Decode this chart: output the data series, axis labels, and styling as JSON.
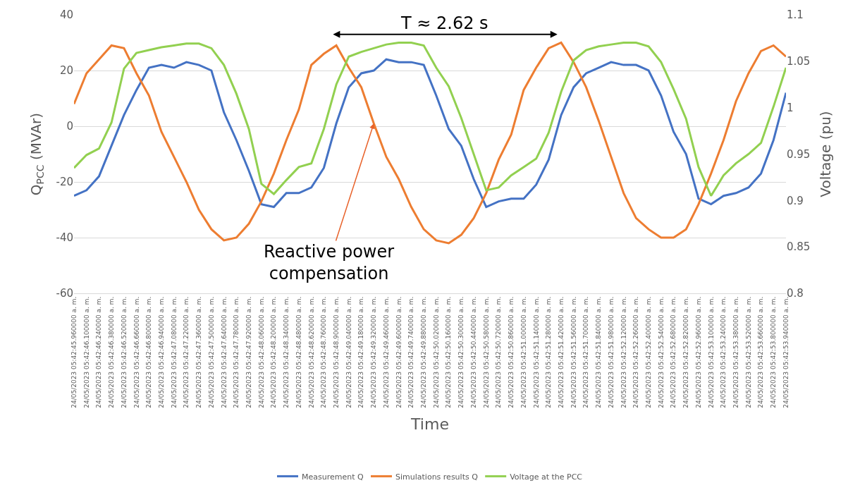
{
  "chart_data": {
    "type": "line",
    "xlabel": "Time",
    "ylabel": "Q$_{PCC}$ (MVAr)",
    "y2label": "Voltage (pu)",
    "categories": [
      "24/05/2023 05:42:45.960000 a. m.",
      "24/05/2023 05:42:46.100000 a. m.",
      "24/05/2023 05:42:46.240000 a. m.",
      "24/05/2023 05:42:46.380000 a. m.",
      "24/05/2023 05:42:46.520000 a. m.",
      "24/05/2023 05:42:46.660000 a. m.",
      "24/05/2023 05:42:46.800000 a. m.",
      "24/05/2023 05:42:46.940000 a. m.",
      "24/05/2023 05:42:47.080000 a. m.",
      "24/05/2023 05:42:47.220000 a. m.",
      "24/05/2023 05:42:47.360000 a. m.",
      "24/05/2023 05:42:47.500000 a. m.",
      "24/05/2023 05:42:47.640000 a. m.",
      "24/05/2023 05:42:47.780000 a. m.",
      "24/05/2023 05:42:47.920000 a. m.",
      "24/05/2023 05:42:48.060000 a. m.",
      "24/05/2023 05:42:48.200000 a. m.",
      "24/05/2023 05:42:48.340000 a. m.",
      "24/05/2023 05:42:48.480000 a. m.",
      "24/05/2023 05:42:48.620000 a. m.",
      "24/05/2023 05:42:48.760000 a. m.",
      "24/05/2023 05:42:48.900000 a. m.",
      "24/05/2023 05:42:49.040000 a. m.",
      "24/05/2023 05:42:49.180000 a. m.",
      "24/05/2023 05:42:49.320000 a. m.",
      "24/05/2023 05:42:49.460000 a. m.",
      "24/05/2023 05:42:49.600000 a. m.",
      "24/05/2023 05:42:49.740000 a. m.",
      "24/05/2023 05:42:49.880000 a. m.",
      "24/05/2023 05:42:50.020000 a. m.",
      "24/05/2023 05:42:50.160000 a. m.",
      "24/05/2023 05:42:50.300000 a. m.",
      "24/05/2023 05:42:50.440000 a. m.",
      "24/05/2023 05:42:50.580000 a. m.",
      "24/05/2023 05:42:50.720000 a. m.",
      "24/05/2023 05:42:50.860000 a. m.",
      "24/05/2023 05:42:51.000000 a. m.",
      "24/05/2023 05:42:51.140000 a. m.",
      "24/05/2023 05:42:51.280000 a. m.",
      "24/05/2023 05:42:51.420000 a. m.",
      "24/05/2023 05:42:51.560000 a. m.",
      "24/05/2023 05:42:51.700000 a. m.",
      "24/05/2023 05:42:51.840000 a. m.",
      "24/05/2023 05:42:51.980000 a. m.",
      "24/05/2023 05:42:52.120000 a. m.",
      "24/05/2023 05:42:52.260000 a. m.",
      "24/05/2023 05:42:52.400000 a. m.",
      "24/05/2023 05:42:52.540000 a. m.",
      "24/05/2023 05:42:52.680000 a. m.",
      "24/05/2023 05:42:52.820000 a. m.",
      "24/05/2023 05:42:52.960000 a. m.",
      "24/05/2023 05:42:53.100000 a. m.",
      "24/05/2023 05:42:53.240000 a. m.",
      "24/05/2023 05:42:53.380000 a. m.",
      "24/05/2023 05:42:53.520000 a. m.",
      "24/05/2023 05:42:53.660000 a. m.",
      "24/05/2023 05:42:53.800000 a. m.",
      "24/05/2023 05:42:53.940000 a. m."
    ],
    "series": [
      {
        "name": "Measurement Q",
        "color": "#4472c4",
        "values": [
          -25,
          -23,
          -18,
          -7,
          4,
          13,
          21,
          22,
          21,
          23,
          22,
          20,
          5,
          -5,
          -16,
          -28,
          -29,
          -24,
          -24,
          -22,
          -15,
          1,
          14,
          19,
          20,
          24,
          23,
          23,
          22,
          11,
          -1,
          -7,
          -19,
          -29,
          -27,
          -26,
          -26,
          -21,
          -12,
          4,
          14,
          19,
          21,
          23,
          22,
          22,
          20,
          11,
          -2,
          -10,
          -26,
          -28,
          -25,
          -24,
          -22,
          -17,
          -5,
          12
        ]
      },
      {
        "name": "Simulations results Q",
        "color": "#ed7d31",
        "values": [
          8,
          19,
          24,
          29,
          28,
          19,
          11,
          -2,
          -11,
          -20,
          -30,
          -37,
          -41,
          -40,
          -35,
          -27,
          -17,
          -5,
          6,
          22,
          26,
          29,
          21,
          14,
          1,
          -11,
          -19,
          -29,
          -37,
          -41,
          -42,
          -39,
          -33,
          -24,
          -12,
          -3,
          13,
          21,
          28,
          30,
          23,
          14,
          2,
          -11,
          -24,
          -33,
          -37,
          -40,
          -40,
          -37,
          -28,
          -17,
          -5,
          9,
          19,
          27,
          29,
          25
        ]
      },
      {
        "name": "Voltage at the PCC",
        "color": "#92d050",
        "axis": "y2",
        "values": [
          0.935,
          0.949,
          0.956,
          0.984,
          1.042,
          1.059,
          1.062,
          1.065,
          1.067,
          1.069,
          1.069,
          1.064,
          1.046,
          1.015,
          0.977,
          0.918,
          0.907,
          0.922,
          0.936,
          0.94,
          0.977,
          1.025,
          1.055,
          1.06,
          1.064,
          1.068,
          1.07,
          1.07,
          1.067,
          1.043,
          1.023,
          0.989,
          0.95,
          0.911,
          0.914,
          0.927,
          0.936,
          0.945,
          0.973,
          1.017,
          1.051,
          1.062,
          1.066,
          1.068,
          1.07,
          1.07,
          1.066,
          1.049,
          1.02,
          0.988,
          0.936,
          0.905,
          0.927,
          0.94,
          0.95,
          0.962,
          1.001,
          1.043
        ]
      }
    ],
    "ylim": [
      -60,
      40
    ],
    "yticks": [
      -60,
      -40,
      -20,
      0,
      20,
      40
    ],
    "y2lim": [
      0.8,
      1.1
    ],
    "y2ticks": [
      0.8,
      0.85,
      0.9,
      0.95,
      1,
      1.05,
      1.1
    ],
    "grid": "y",
    "legend": "bottom",
    "marker": "none",
    "line_style": "solid",
    "annotations": [
      "T ≈ 2.62 s",
      {
        "text": "Reactive power compensation",
        "x": "24/05/2023 05:42:49.320000 a. m.",
        "y": 1
      }
    ]
  }
}
